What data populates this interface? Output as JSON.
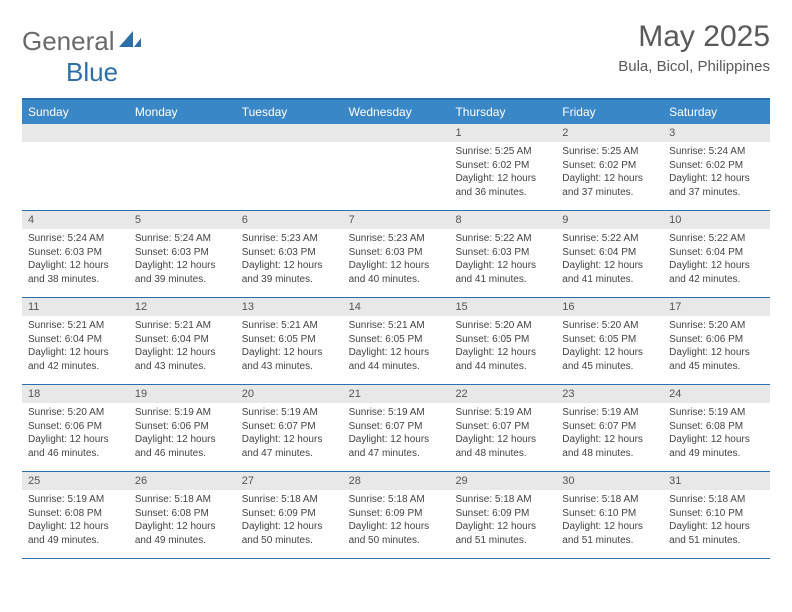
{
  "logo": {
    "text1": "General",
    "text2": "Blue"
  },
  "title": "May 2025",
  "location": "Bula, Bicol, Philippines",
  "colors": {
    "header_bg": "#3a87c8",
    "header_border": "#2a6fb0",
    "daynum_bg": "#e8e8e8",
    "text": "#444444"
  },
  "day_names": [
    "Sunday",
    "Monday",
    "Tuesday",
    "Wednesday",
    "Thursday",
    "Friday",
    "Saturday"
  ],
  "weeks": [
    [
      {
        "n": "",
        "sr": "",
        "ss": "",
        "dl": ""
      },
      {
        "n": "",
        "sr": "",
        "ss": "",
        "dl": ""
      },
      {
        "n": "",
        "sr": "",
        "ss": "",
        "dl": ""
      },
      {
        "n": "",
        "sr": "",
        "ss": "",
        "dl": ""
      },
      {
        "n": "1",
        "sr": "Sunrise: 5:25 AM",
        "ss": "Sunset: 6:02 PM",
        "dl": "Daylight: 12 hours and 36 minutes."
      },
      {
        "n": "2",
        "sr": "Sunrise: 5:25 AM",
        "ss": "Sunset: 6:02 PM",
        "dl": "Daylight: 12 hours and 37 minutes."
      },
      {
        "n": "3",
        "sr": "Sunrise: 5:24 AM",
        "ss": "Sunset: 6:02 PM",
        "dl": "Daylight: 12 hours and 37 minutes."
      }
    ],
    [
      {
        "n": "4",
        "sr": "Sunrise: 5:24 AM",
        "ss": "Sunset: 6:03 PM",
        "dl": "Daylight: 12 hours and 38 minutes."
      },
      {
        "n": "5",
        "sr": "Sunrise: 5:24 AM",
        "ss": "Sunset: 6:03 PM",
        "dl": "Daylight: 12 hours and 39 minutes."
      },
      {
        "n": "6",
        "sr": "Sunrise: 5:23 AM",
        "ss": "Sunset: 6:03 PM",
        "dl": "Daylight: 12 hours and 39 minutes."
      },
      {
        "n": "7",
        "sr": "Sunrise: 5:23 AM",
        "ss": "Sunset: 6:03 PM",
        "dl": "Daylight: 12 hours and 40 minutes."
      },
      {
        "n": "8",
        "sr": "Sunrise: 5:22 AM",
        "ss": "Sunset: 6:03 PM",
        "dl": "Daylight: 12 hours and 41 minutes."
      },
      {
        "n": "9",
        "sr": "Sunrise: 5:22 AM",
        "ss": "Sunset: 6:04 PM",
        "dl": "Daylight: 12 hours and 41 minutes."
      },
      {
        "n": "10",
        "sr": "Sunrise: 5:22 AM",
        "ss": "Sunset: 6:04 PM",
        "dl": "Daylight: 12 hours and 42 minutes."
      }
    ],
    [
      {
        "n": "11",
        "sr": "Sunrise: 5:21 AM",
        "ss": "Sunset: 6:04 PM",
        "dl": "Daylight: 12 hours and 42 minutes."
      },
      {
        "n": "12",
        "sr": "Sunrise: 5:21 AM",
        "ss": "Sunset: 6:04 PM",
        "dl": "Daylight: 12 hours and 43 minutes."
      },
      {
        "n": "13",
        "sr": "Sunrise: 5:21 AM",
        "ss": "Sunset: 6:05 PM",
        "dl": "Daylight: 12 hours and 43 minutes."
      },
      {
        "n": "14",
        "sr": "Sunrise: 5:21 AM",
        "ss": "Sunset: 6:05 PM",
        "dl": "Daylight: 12 hours and 44 minutes."
      },
      {
        "n": "15",
        "sr": "Sunrise: 5:20 AM",
        "ss": "Sunset: 6:05 PM",
        "dl": "Daylight: 12 hours and 44 minutes."
      },
      {
        "n": "16",
        "sr": "Sunrise: 5:20 AM",
        "ss": "Sunset: 6:05 PM",
        "dl": "Daylight: 12 hours and 45 minutes."
      },
      {
        "n": "17",
        "sr": "Sunrise: 5:20 AM",
        "ss": "Sunset: 6:06 PM",
        "dl": "Daylight: 12 hours and 45 minutes."
      }
    ],
    [
      {
        "n": "18",
        "sr": "Sunrise: 5:20 AM",
        "ss": "Sunset: 6:06 PM",
        "dl": "Daylight: 12 hours and 46 minutes."
      },
      {
        "n": "19",
        "sr": "Sunrise: 5:19 AM",
        "ss": "Sunset: 6:06 PM",
        "dl": "Daylight: 12 hours and 46 minutes."
      },
      {
        "n": "20",
        "sr": "Sunrise: 5:19 AM",
        "ss": "Sunset: 6:07 PM",
        "dl": "Daylight: 12 hours and 47 minutes."
      },
      {
        "n": "21",
        "sr": "Sunrise: 5:19 AM",
        "ss": "Sunset: 6:07 PM",
        "dl": "Daylight: 12 hours and 47 minutes."
      },
      {
        "n": "22",
        "sr": "Sunrise: 5:19 AM",
        "ss": "Sunset: 6:07 PM",
        "dl": "Daylight: 12 hours and 48 minutes."
      },
      {
        "n": "23",
        "sr": "Sunrise: 5:19 AM",
        "ss": "Sunset: 6:07 PM",
        "dl": "Daylight: 12 hours and 48 minutes."
      },
      {
        "n": "24",
        "sr": "Sunrise: 5:19 AM",
        "ss": "Sunset: 6:08 PM",
        "dl": "Daylight: 12 hours and 49 minutes."
      }
    ],
    [
      {
        "n": "25",
        "sr": "Sunrise: 5:19 AM",
        "ss": "Sunset: 6:08 PM",
        "dl": "Daylight: 12 hours and 49 minutes."
      },
      {
        "n": "26",
        "sr": "Sunrise: 5:18 AM",
        "ss": "Sunset: 6:08 PM",
        "dl": "Daylight: 12 hours and 49 minutes."
      },
      {
        "n": "27",
        "sr": "Sunrise: 5:18 AM",
        "ss": "Sunset: 6:09 PM",
        "dl": "Daylight: 12 hours and 50 minutes."
      },
      {
        "n": "28",
        "sr": "Sunrise: 5:18 AM",
        "ss": "Sunset: 6:09 PM",
        "dl": "Daylight: 12 hours and 50 minutes."
      },
      {
        "n": "29",
        "sr": "Sunrise: 5:18 AM",
        "ss": "Sunset: 6:09 PM",
        "dl": "Daylight: 12 hours and 51 minutes."
      },
      {
        "n": "30",
        "sr": "Sunrise: 5:18 AM",
        "ss": "Sunset: 6:10 PM",
        "dl": "Daylight: 12 hours and 51 minutes."
      },
      {
        "n": "31",
        "sr": "Sunrise: 5:18 AM",
        "ss": "Sunset: 6:10 PM",
        "dl": "Daylight: 12 hours and 51 minutes."
      }
    ]
  ]
}
